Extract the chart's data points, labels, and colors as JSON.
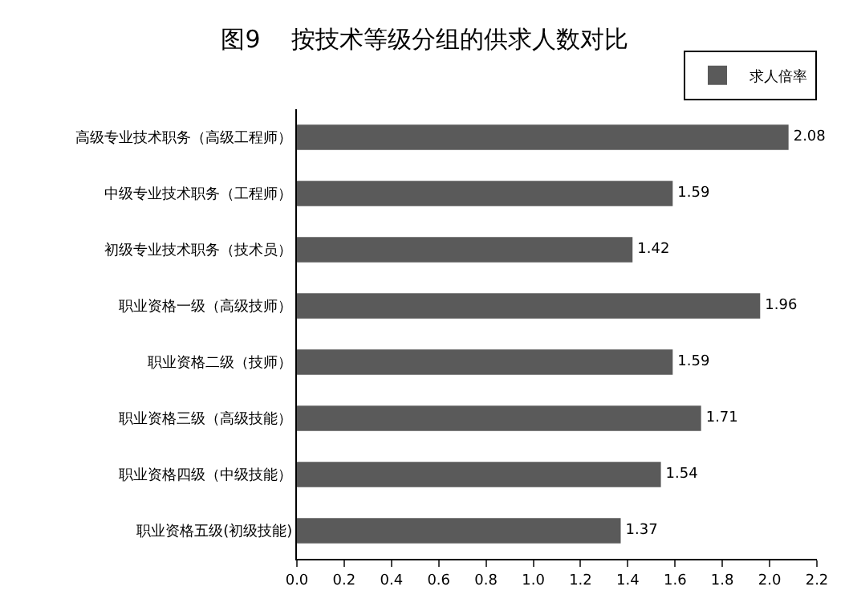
{
  "chart_data": {
    "type": "bar",
    "orientation": "horizontal",
    "title": "图9    按技术等级分组的供求人数对比",
    "categories": [
      "高级专业技术职务（高级工程师）",
      "中级专业技术职务（工程师）",
      "初级专业技术职务（技术员）",
      "职业资格一级（高级技师）",
      "职业资格二级（技师）",
      "职业资格三级（高级技能）",
      "职业资格四级（中级技能）",
      "职业资格五级(初级技能)"
    ],
    "series": [
      {
        "name": "求人倍率",
        "color": "#5a5a5a",
        "values": [
          2.08,
          1.59,
          1.42,
          1.96,
          1.59,
          1.71,
          1.54,
          1.37
        ]
      }
    ],
    "xlim": [
      0,
      2.2
    ],
    "xticks": [
      {
        "value": 0,
        "label": "0.0"
      },
      {
        "value": 0.2,
        "label": "0.2"
      },
      {
        "value": 0.4,
        "label": "0.4"
      },
      {
        "value": 0.6,
        "label": "0.6"
      },
      {
        "value": 0.8,
        "label": "0.8"
      },
      {
        "value": 1,
        "label": "1.0"
      },
      {
        "value": 1.2,
        "label": "1.2"
      },
      {
        "value": 1.4,
        "label": "1.4"
      },
      {
        "value": 1.6,
        "label": "1.6"
      },
      {
        "value": 1.8,
        "label": "1.8"
      },
      {
        "value": 2,
        "label": "2.0"
      },
      {
        "value": 2.2,
        "label": "2.2"
      }
    ],
    "data_labels": true,
    "legend": "top right",
    "grid": false
  }
}
